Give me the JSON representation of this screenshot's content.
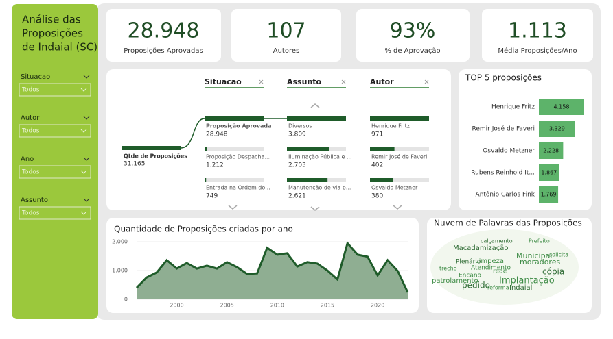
{
  "sidebar": {
    "title": [
      "Análise das",
      "Proposições",
      "de Indaial (SC)"
    ],
    "filters": [
      {
        "label": "Situacao",
        "value": "Todos"
      },
      {
        "label": "Autor",
        "value": "Todos"
      },
      {
        "label": "Ano",
        "value": "Todos"
      },
      {
        "label": "Assunto",
        "value": "Todos"
      }
    ]
  },
  "kpis": [
    {
      "value": "28.948",
      "label": "Proposições Aprovadas"
    },
    {
      "value": "107",
      "label": "Autores"
    },
    {
      "value": "93%",
      "label": "% de Aprovação"
    },
    {
      "value": "1.113",
      "label": "Média Proposições/Ano"
    }
  ],
  "tree": {
    "root": {
      "name": "Qtde de Proposições",
      "value": 31165,
      "value_label": "31.165"
    },
    "columns": [
      {
        "header": "Situacao",
        "items": [
          {
            "name": "Proposição Aprovada",
            "value": 28948,
            "value_label": "28.948"
          },
          {
            "name": "Proposição Despacha...",
            "value": 1212,
            "value_label": "1.212"
          },
          {
            "name": "Entrada na Ordem do...",
            "value": 749,
            "value_label": "749"
          }
        ]
      },
      {
        "header": "Assunto",
        "items": [
          {
            "name": "Diversos",
            "value": 3809,
            "value_label": "3.809"
          },
          {
            "name": "Iluminação Pública e ...",
            "value": 2703,
            "value_label": "2.703"
          },
          {
            "name": "Manutenção de via p...",
            "value": 2621,
            "value_label": "2.621"
          }
        ]
      },
      {
        "header": "Autor",
        "items": [
          {
            "name": "Henrique Fritz",
            "value": 971,
            "value_label": "971"
          },
          {
            "name": "Remir José de Faveri",
            "value": 402,
            "value_label": "402"
          },
          {
            "name": "Osvaldo Metzner",
            "value": 380,
            "value_label": "380"
          }
        ]
      }
    ]
  },
  "top5": {
    "title": "TOP 5 proposições",
    "categories": [
      "Henrique Fritz",
      "Remir José de Faveri",
      "Osvaldo Metzner",
      "Rubens Reinhold It...",
      "Antônio Carlos Fink"
    ],
    "values": [
      4158,
      3329,
      2228,
      1867,
      1769
    ],
    "value_labels": [
      "4.158",
      "3.329",
      "2.228",
      "1.867",
      "1.769"
    ],
    "color": "#5db36a"
  },
  "area_chart": {
    "type": "area",
    "title": "Quantidade de Proposições criadas por ano",
    "color": "#1f5c2a",
    "x": [
      1996,
      1997,
      1998,
      1999,
      2000,
      2001,
      2002,
      2003,
      2004,
      2005,
      2006,
      2007,
      2008,
      2009,
      2010,
      2011,
      2012,
      2013,
      2014,
      2015,
      2016,
      2017,
      2018,
      2019,
      2020,
      2021,
      2022,
      2023
    ],
    "values": [
      400,
      760,
      930,
      1360,
      1070,
      1260,
      1070,
      1170,
      1070,
      1290,
      1120,
      880,
      900,
      1790,
      1550,
      1600,
      1140,
      1290,
      1240,
      1000,
      690,
      1950,
      1550,
      1480,
      830,
      1360,
      980,
      240
    ],
    "xlim": [
      1996,
      2023
    ],
    "xticks": [
      2000,
      2005,
      2010,
      2015,
      2020
    ],
    "ylim": [
      0,
      2000
    ],
    "yticks": [
      0,
      {
        "value": 1000,
        "label": "1.000"
      },
      {
        "value": 2000,
        "label": "2.000"
      }
    ]
  },
  "wordcloud": {
    "title": "Nuvem de Palavras das Proposições",
    "words": [
      "Macadamização",
      "Municipal",
      "moradores",
      "cópia",
      "Encano",
      "Implantação",
      "pedido",
      "patrolamento",
      "Limpeza",
      "Plenário",
      "Atendimento",
      "rede",
      "Indaial",
      "reforma",
      "Prefeito",
      "calçamento",
      "solicita",
      "trecho"
    ]
  }
}
